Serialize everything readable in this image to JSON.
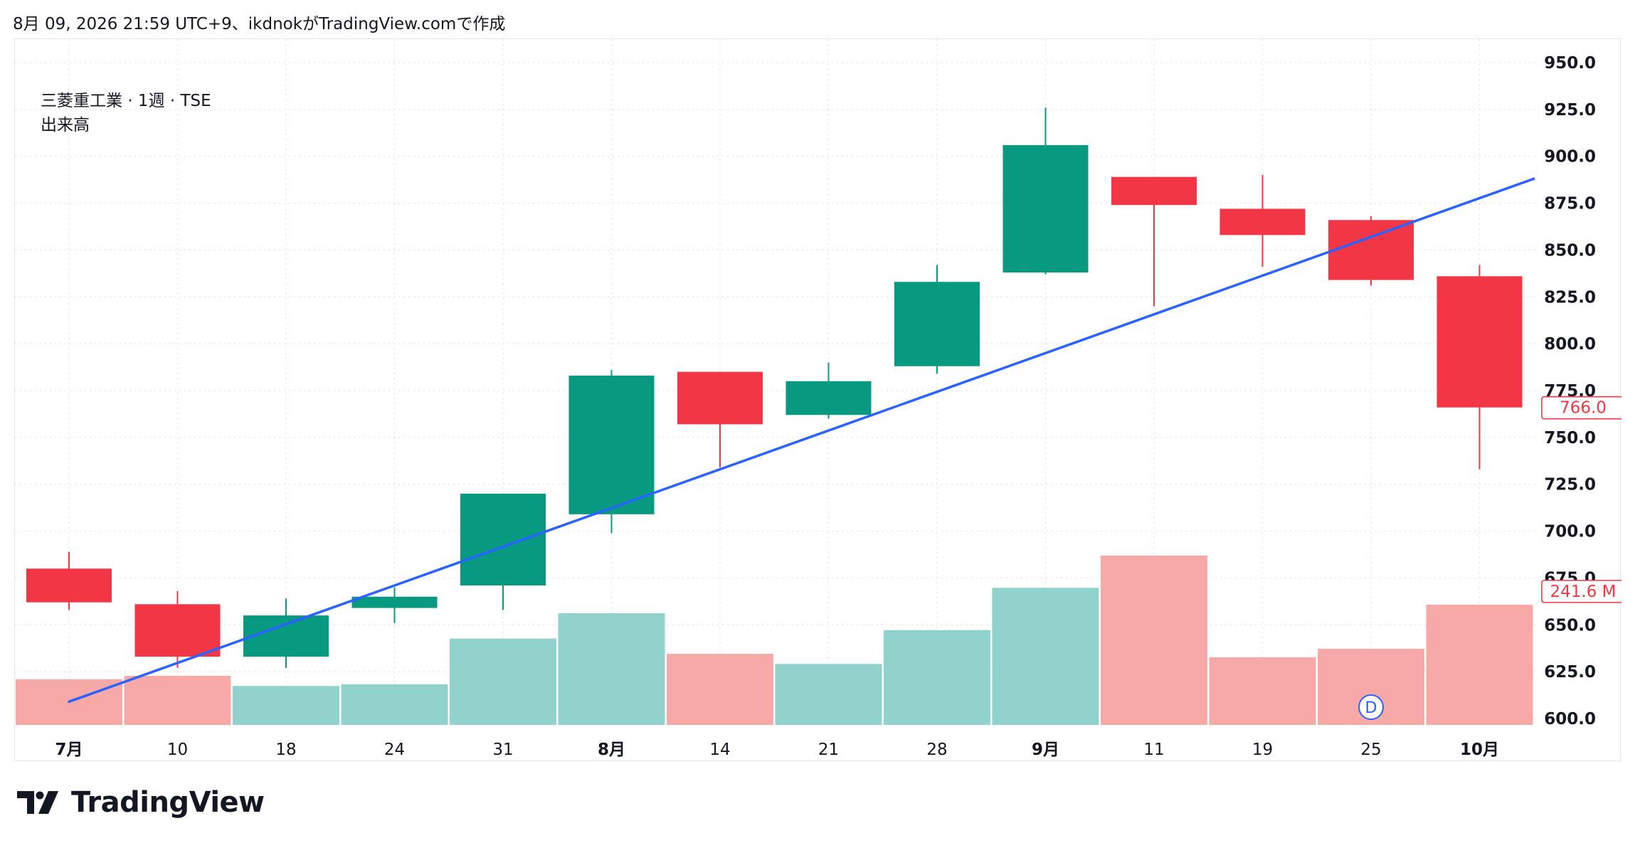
{
  "header": {
    "caption": "8月 09, 2026 21:59 UTC+9、ikdnokがTradingView.comで作成"
  },
  "legend": {
    "symbol_line": "三菱重工業 · 1週 · TSE",
    "indicator": "出来高"
  },
  "brand": {
    "name": "TradingView",
    "icon": "tradingview-logo-icon"
  },
  "colors": {
    "up": "#089981",
    "down": "#f23645",
    "up_volume": "#92d2cc",
    "down_volume": "#f7a9a7",
    "trendline": "#2962ff",
    "grid": "#e0e3eb"
  },
  "chart_data": {
    "type": "candlestick",
    "y_axis": {
      "ticks": [
        "950.0",
        "925.0",
        "900.0",
        "875.0",
        "850.0",
        "825.0",
        "800.0",
        "775.0",
        "750.0",
        "725.0",
        "700.0",
        "675.0",
        "650.0",
        "625.0",
        "600.0"
      ],
      "range": [
        600,
        950
      ],
      "bold": true
    },
    "x_axis": {
      "labels": [
        {
          "text": "7月",
          "bold": true
        },
        {
          "text": "10",
          "bold": false
        },
        {
          "text": "18",
          "bold": false
        },
        {
          "text": "24",
          "bold": false
        },
        {
          "text": "31",
          "bold": false
        },
        {
          "text": "8月",
          "bold": true
        },
        {
          "text": "14",
          "bold": false
        },
        {
          "text": "21",
          "bold": false
        },
        {
          "text": "28",
          "bold": false
        },
        {
          "text": "9月",
          "bold": true
        },
        {
          "text": "11",
          "bold": false
        },
        {
          "text": "19",
          "bold": false
        },
        {
          "text": "25",
          "bold": false
        },
        {
          "text": "10月",
          "bold": true
        }
      ]
    },
    "candles": [
      {
        "open": 680,
        "high": 689,
        "low": 658,
        "close": 662
      },
      {
        "open": 661,
        "high": 668,
        "low": 627,
        "close": 633
      },
      {
        "open": 633,
        "high": 664,
        "low": 627,
        "close": 655
      },
      {
        "open": 659,
        "high": 670,
        "low": 651,
        "close": 665
      },
      {
        "open": 671,
        "high": 720,
        "low": 658,
        "close": 720
      },
      {
        "open": 709,
        "high": 786,
        "low": 699,
        "close": 783
      },
      {
        "open": 785,
        "high": 785,
        "low": 734,
        "close": 757
      },
      {
        "open": 762,
        "high": 790,
        "low": 760,
        "close": 780
      },
      {
        "open": 788,
        "high": 842,
        "low": 784,
        "close": 833
      },
      {
        "open": 838,
        "high": 926,
        "low": 837,
        "close": 906
      },
      {
        "open": 889,
        "high": 889,
        "low": 820,
        "close": 874
      },
      {
        "open": 872,
        "high": 890,
        "low": 841,
        "close": 858
      },
      {
        "open": 866,
        "high": 868,
        "low": 831,
        "close": 834
      },
      {
        "open": 836,
        "high": 842,
        "low": 733,
        "close": 766
      }
    ],
    "volume_relative": [
      0.27,
      0.29,
      0.23,
      0.24,
      0.51,
      0.66,
      0.42,
      0.36,
      0.56,
      0.81,
      1.0,
      0.4,
      0.45,
      0.71
    ],
    "trendline": {
      "start": {
        "bar": 0,
        "price": 609
      },
      "end": {
        "bar": 13.5,
        "price": 888
      }
    },
    "last_price_label": "766.0",
    "volume_label": "241.6 M",
    "dividend_marker": {
      "bar": 12,
      "label": "D"
    }
  }
}
